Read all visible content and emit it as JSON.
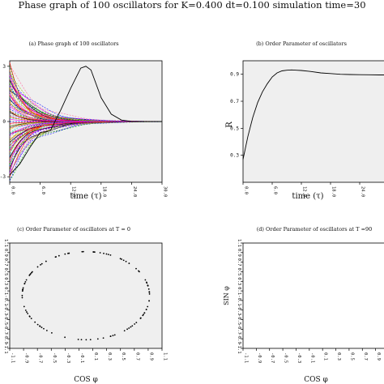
{
  "title": "Phase graph of 100 oscillators for K=0.400 dt=0.100 simulation time=30",
  "chart_data": [
    {
      "id": "a",
      "type": "line",
      "title": "(a) Phase graph of 100 oscillators",
      "xlabel": "time (τ)",
      "ylabel": "",
      "xlim": [
        0,
        30
      ],
      "ylim": [
        -3.3,
        3.3
      ],
      "xticks": [
        "0.0",
        "6.0",
        "12.0",
        "18.0",
        "24.0",
        "30.0"
      ],
      "yticks": [
        "-3",
        "0",
        "3"
      ],
      "n_series": 100,
      "converged_phase": 0.0,
      "highlight_series": {
        "x": [
          0,
          2,
          4,
          6,
          8,
          10,
          12,
          14,
          15,
          16,
          18,
          20,
          22,
          24,
          26,
          28,
          30
        ],
        "y": [
          -2.9,
          -2.3,
          -1.4,
          -0.6,
          -0.5,
          0.6,
          1.8,
          2.9,
          3.0,
          2.8,
          1.3,
          0.4,
          0.08,
          0.0,
          0.0,
          0.0,
          0.0
        ]
      }
    },
    {
      "id": "b",
      "type": "line",
      "title": "(b) Order Parameter of oscillators",
      "xlabel": "time (τ)",
      "ylabel": "R",
      "xlim": [
        0,
        30
      ],
      "ylim": [
        0.1,
        1.0
      ],
      "xticks": [
        "0.0",
        "6.0",
        "12.0",
        "18.0",
        "24.0",
        "30.0"
      ],
      "yticks": [
        "0.3",
        "0.5",
        "0.7",
        "0.9"
      ],
      "x": [
        0,
        1,
        2,
        3,
        4,
        5,
        6,
        7,
        8,
        9,
        10,
        11,
        12,
        14,
        16,
        18,
        20,
        22,
        24,
        26,
        28,
        30
      ],
      "y": [
        0.27,
        0.44,
        0.58,
        0.69,
        0.77,
        0.83,
        0.88,
        0.91,
        0.925,
        0.93,
        0.932,
        0.93,
        0.928,
        0.92,
        0.91,
        0.905,
        0.9,
        0.898,
        0.897,
        0.896,
        0.895,
        0.895
      ]
    },
    {
      "id": "c",
      "type": "scatter",
      "title": "(c) Order Parameter of oscillators at T = 0",
      "xlabel": "COS φ",
      "ylabel": "",
      "xlim": [
        -1.1,
        1.1
      ],
      "ylim": [
        -1.1,
        1.1
      ],
      "xticks": [
        "-1.1",
        "-0.9",
        "-0.7",
        "-0.5",
        "-0.3",
        "-0.1",
        "0.1",
        "0.3",
        "0.5",
        "0.7",
        "0.9",
        "1.1"
      ],
      "yticks": [
        "-1.1",
        "-0.9",
        "-0.7",
        "-0.5",
        "-0.3",
        "-0.1",
        "0.1",
        "0.3",
        "0.5",
        "0.7",
        "0.9",
        "1.1"
      ],
      "n_points": 100,
      "radius": 1.0
    },
    {
      "id": "d",
      "type": "scatter",
      "title": "(d) Order Parameter of oscillators at T =90",
      "xlabel": "COS φ",
      "ylabel": "SIN φ",
      "xlim": [
        -1.1,
        1.1
      ],
      "ylim": [
        -1.1,
        1.1
      ],
      "xticks": [
        "-1.1",
        "-0.9",
        "-0.7",
        "-0.5",
        "-0.3",
        "-0.1",
        "0.1",
        "0.3",
        "0.5",
        "0.7",
        "0.9",
        "1.1"
      ],
      "yticks": [
        "-1.1",
        "-0.9",
        "-0.7",
        "-0.5",
        "-0.3",
        "-0.1",
        "0.1",
        "0.3",
        "0.5",
        "0.7",
        "0.9",
        "1.1"
      ],
      "points": []
    }
  ],
  "colors": {
    "plot_bg": "#efefef",
    "axis": "#000000",
    "line_palette": [
      "#ff0000",
      "#00aa00",
      "#0000ff",
      "#ff00ff",
      "#00cccc",
      "#cccc00",
      "#ff8800",
      "#8800ff",
      "#888888",
      "#000000",
      "#88cc00",
      "#ff6699"
    ]
  }
}
